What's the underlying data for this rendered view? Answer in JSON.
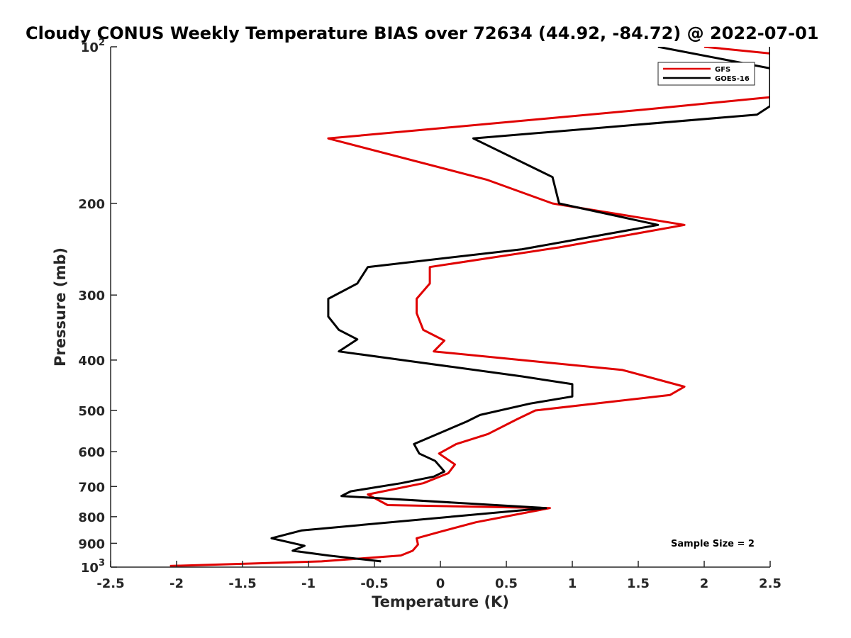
{
  "chart_data": {
    "type": "line",
    "title": "Cloudy CONUS Weekly Temperature BIAS over 72634 (44.92, -84.72) @ 2022-07-01",
    "xlabel": "Temperature (K)",
    "ylabel": "Pressure (mb)",
    "xlim": [
      -2.5,
      2.5
    ],
    "ylim": [
      100,
      1000
    ],
    "y_scale": "log",
    "y_reversed": true,
    "xticks": [
      -2.5,
      -2,
      -1.5,
      -1,
      -0.5,
      0,
      0.5,
      1,
      1.5,
      2,
      2.5
    ],
    "xtick_labels": [
      "-2.5",
      "-2",
      "-1.5",
      "-1",
      "-0.5",
      "0",
      "0.5",
      "1",
      "1.5",
      "2",
      "2.5"
    ],
    "yticks": [
      100,
      200,
      300,
      400,
      500,
      600,
      700,
      800,
      900,
      1000
    ],
    "ytick_labels": [
      {
        "base": "10",
        "exp": "2"
      },
      {
        "base": "200"
      },
      {
        "base": "300"
      },
      {
        "base": "400"
      },
      {
        "base": "500"
      },
      {
        "base": "600"
      },
      {
        "base": "700"
      },
      {
        "base": "800"
      },
      {
        "base": "900"
      },
      {
        "base": "10",
        "exp": "3"
      }
    ],
    "grid": false,
    "legend_position": "top-right",
    "annotation": "Sample Size = 2",
    "series": [
      {
        "name": "GFS",
        "color": "#e00000",
        "points": [
          [
            2.0,
            100
          ],
          [
            2.5,
            103
          ],
          [
            2.5,
            100
          ],
          [
            2.5,
            125
          ],
          [
            1.55,
            132
          ],
          [
            -0.85,
            150
          ],
          [
            0.35,
            180
          ],
          [
            0.85,
            200
          ],
          [
            1.85,
            220
          ],
          [
            0.9,
            243
          ],
          [
            -0.08,
            265
          ],
          [
            -0.08,
            285
          ],
          [
            -0.18,
            305
          ],
          [
            -0.18,
            325
          ],
          [
            -0.13,
            350
          ],
          [
            0.03,
            367
          ],
          [
            -0.05,
            385
          ],
          [
            1.38,
            418
          ],
          [
            1.85,
            450
          ],
          [
            1.74,
            467
          ],
          [
            0.72,
            500
          ],
          [
            0.58,
            520
          ],
          [
            0.36,
            555
          ],
          [
            0.12,
            580
          ],
          [
            -0.01,
            605
          ],
          [
            0.11,
            635
          ],
          [
            0.06,
            660
          ],
          [
            -0.13,
            690
          ],
          [
            -0.55,
            725
          ],
          [
            -0.4,
            760
          ],
          [
            0.83,
            770
          ],
          [
            0.27,
            820
          ],
          [
            0.0,
            855
          ],
          [
            -0.18,
            880
          ],
          [
            -0.17,
            905
          ],
          [
            -0.21,
            930
          ],
          [
            -0.3,
            950
          ],
          [
            -0.9,
            975
          ],
          [
            -2.05,
            995
          ]
        ]
      },
      {
        "name": "GOES-16",
        "color": "#000000",
        "points": [
          [
            1.65,
            100
          ],
          [
            2.5,
            110
          ],
          [
            2.5,
            100
          ],
          [
            2.5,
            130
          ],
          [
            2.4,
            135
          ],
          [
            0.25,
            150
          ],
          [
            0.85,
            178
          ],
          [
            0.9,
            200
          ],
          [
            1.65,
            220
          ],
          [
            0.62,
            245
          ],
          [
            -0.55,
            265
          ],
          [
            -0.63,
            285
          ],
          [
            -0.85,
            305
          ],
          [
            -0.85,
            330
          ],
          [
            -0.77,
            350
          ],
          [
            -0.63,
            365
          ],
          [
            -0.77,
            385
          ],
          [
            0.62,
            430
          ],
          [
            1.0,
            445
          ],
          [
            1.0,
            470
          ],
          [
            0.68,
            485
          ],
          [
            0.3,
            510
          ],
          [
            0.2,
            525
          ],
          [
            -0.2,
            580
          ],
          [
            -0.16,
            605
          ],
          [
            -0.04,
            625
          ],
          [
            0.03,
            655
          ],
          [
            -0.05,
            670
          ],
          [
            -0.3,
            690
          ],
          [
            -0.68,
            715
          ],
          [
            -0.75,
            730
          ],
          [
            0.8,
            770
          ],
          [
            -1.05,
            850
          ],
          [
            -1.28,
            880
          ],
          [
            -1.03,
            910
          ],
          [
            -1.12,
            930
          ],
          [
            -0.85,
            950
          ],
          [
            -0.45,
            975
          ]
        ]
      }
    ]
  }
}
